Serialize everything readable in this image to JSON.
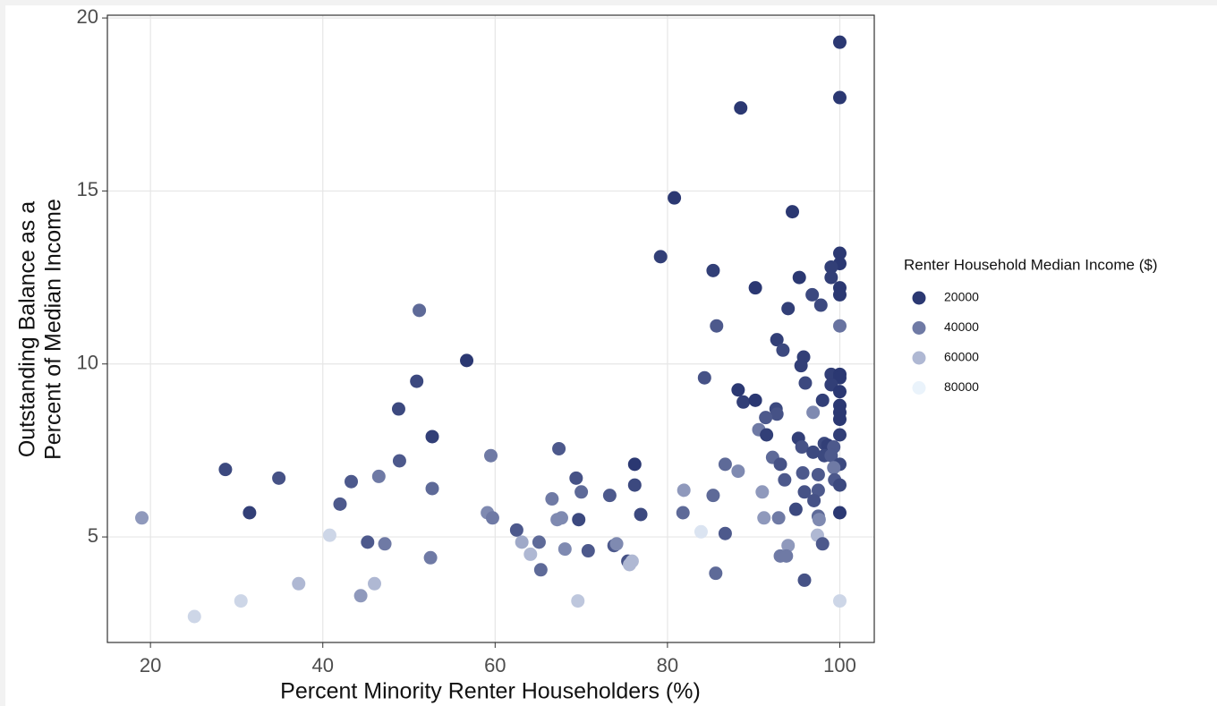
{
  "chart_data": {
    "type": "scatter",
    "x_label": "Percent Minority Renter Householders (%)",
    "y_label": [
      "Outstanding Balance as a",
      "Percent of Median Income"
    ],
    "xlim": [
      15,
      104
    ],
    "ylim": [
      1.95,
      20.08
    ],
    "xticks": [
      20,
      40,
      60,
      80,
      100
    ],
    "yticks": [
      5,
      10,
      15,
      20
    ],
    "grid": true,
    "legend": {
      "title": "Renter Household Median Income ($)",
      "position": "right",
      "values": [
        20000,
        40000,
        60000,
        80000
      ],
      "colors": [
        "#2b3872",
        "#6f7aa5",
        "#afb8d3",
        "#eaf3fb"
      ]
    },
    "series": [
      {
        "x": [
          100,
          100,
          88.5,
          80.8,
          94.5,
          79.2,
          100,
          100,
          85.3,
          95.3,
          99,
          99,
          100,
          90.2,
          96.8,
          100,
          97.8,
          94,
          85.7,
          100,
          51.2,
          92.7,
          93.4,
          95.8,
          56.7,
          95.5,
          84.3,
          99,
          100,
          100,
          50.9,
          96,
          99,
          100,
          88.2,
          88.8,
          90.2,
          98,
          100,
          100,
          48.8,
          92.6,
          92.7,
          96.9,
          100,
          91.4,
          90.6,
          91.5,
          95.2,
          100,
          52.7,
          98.2,
          98.6,
          99.3,
          95.6,
          67.4,
          96.9,
          98.2,
          99,
          92.2,
          59.5,
          48.9,
          76.2,
          86.7,
          93.1,
          100,
          99.3,
          28.7,
          88.2,
          95.7,
          97.5,
          46.5,
          69.4,
          34.9,
          93.6,
          99.4,
          43.3,
          76.2,
          100,
          52.7,
          97.5,
          81.9,
          95.9,
          91,
          70,
          85.3,
          73.3,
          66.6,
          97,
          42,
          94.9,
          31.5,
          59.1,
          81.8,
          100,
          76.9,
          19,
          59.7,
          67.2,
          67.7,
          69.7,
          91.2,
          92.9,
          97.5,
          97.6,
          62.5,
          86.7,
          83.9,
          97.4,
          40.8,
          45.2,
          47.2,
          63.1,
          65.1,
          73.8,
          74.1,
          94,
          98,
          68.1,
          70.8,
          64.1,
          52.5,
          75.4,
          75.9,
          75.6,
          93.1,
          93.8,
          65.3,
          85.6,
          95.9,
          37.2,
          46,
          44.4,
          30.5,
          69.6,
          100,
          25.1
        ],
        "y": [
          19.3,
          17.7,
          17.4,
          14.8,
          14.4,
          13.1,
          13.2,
          12.9,
          12.7,
          12.5,
          12.8,
          12.5,
          12.2,
          12.2,
          12,
          12,
          11.7,
          11.6,
          11.1,
          11.1,
          11.55,
          10.7,
          10.4,
          10.2,
          10.1,
          9.95,
          9.6,
          9.7,
          9.7,
          9.6,
          9.5,
          9.45,
          9.4,
          9.2,
          9.25,
          8.9,
          8.95,
          8.95,
          8.8,
          8.6,
          8.7,
          8.7,
          8.55,
          8.6,
          8.4,
          8.45,
          8.1,
          7.95,
          7.85,
          7.95,
          7.9,
          7.7,
          7.65,
          7.6,
          7.6,
          7.55,
          7.45,
          7.35,
          7.35,
          7.3,
          7.35,
          7.2,
          7.1,
          7.1,
          7.1,
          7.1,
          7,
          6.95,
          6.9,
          6.85,
          6.8,
          6.75,
          6.7,
          6.7,
          6.65,
          6.65,
          6.6,
          6.5,
          6.5,
          6.4,
          6.35,
          6.35,
          6.3,
          6.3,
          6.3,
          6.2,
          6.2,
          6.1,
          6.05,
          5.95,
          5.8,
          5.7,
          5.7,
          5.7,
          5.7,
          5.65,
          5.55,
          5.55,
          5.5,
          5.55,
          5.5,
          5.55,
          5.55,
          5.6,
          5.5,
          5.2,
          5.1,
          5.15,
          5.05,
          5.05,
          4.85,
          4.8,
          4.85,
          4.85,
          4.75,
          4.8,
          4.75,
          4.8,
          4.65,
          4.6,
          4.5,
          4.4,
          4.3,
          4.3,
          4.2,
          4.45,
          4.45,
          4.05,
          3.95,
          3.75,
          3.65,
          3.65,
          3.3,
          3.15,
          3.15,
          3.15,
          2.7
        ],
        "income": [
          15000,
          15000,
          17000,
          18000,
          18000,
          22000,
          20000,
          20000,
          22000,
          20000,
          22000,
          22000,
          20000,
          18000,
          25000,
          20000,
          25000,
          22000,
          30000,
          38000,
          35000,
          22000,
          25000,
          22000,
          20000,
          22000,
          28000,
          22000,
          20000,
          20000,
          25000,
          25000,
          22000,
          20000,
          20000,
          22000,
          20000,
          22000,
          20000,
          20000,
          25000,
          25000,
          28000,
          45000,
          20000,
          30000,
          40000,
          22000,
          22000,
          22000,
          22000,
          25000,
          22000,
          30000,
          28000,
          30000,
          25000,
          25000,
          30000,
          35000,
          40000,
          30000,
          20000,
          35000,
          28000,
          25000,
          40000,
          25000,
          45000,
          30000,
          30000,
          40000,
          28000,
          28000,
          30000,
          30000,
          30000,
          25000,
          25000,
          35000,
          30000,
          50000,
          28000,
          50000,
          35000,
          35000,
          30000,
          40000,
          28000,
          30000,
          25000,
          22000,
          45000,
          35000,
          20000,
          25000,
          50000,
          40000,
          45000,
          45000,
          25000,
          50000,
          40000,
          35000,
          45000,
          30000,
          30000,
          75000,
          60000,
          70000,
          30000,
          40000,
          55000,
          35000,
          30000,
          45000,
          50000,
          30000,
          45000,
          30000,
          60000,
          40000,
          28000,
          60000,
          60000,
          40000,
          40000,
          35000,
          35000,
          28000,
          60000,
          60000,
          50000,
          70000,
          65000,
          70000,
          70000
        ]
      }
    ]
  }
}
